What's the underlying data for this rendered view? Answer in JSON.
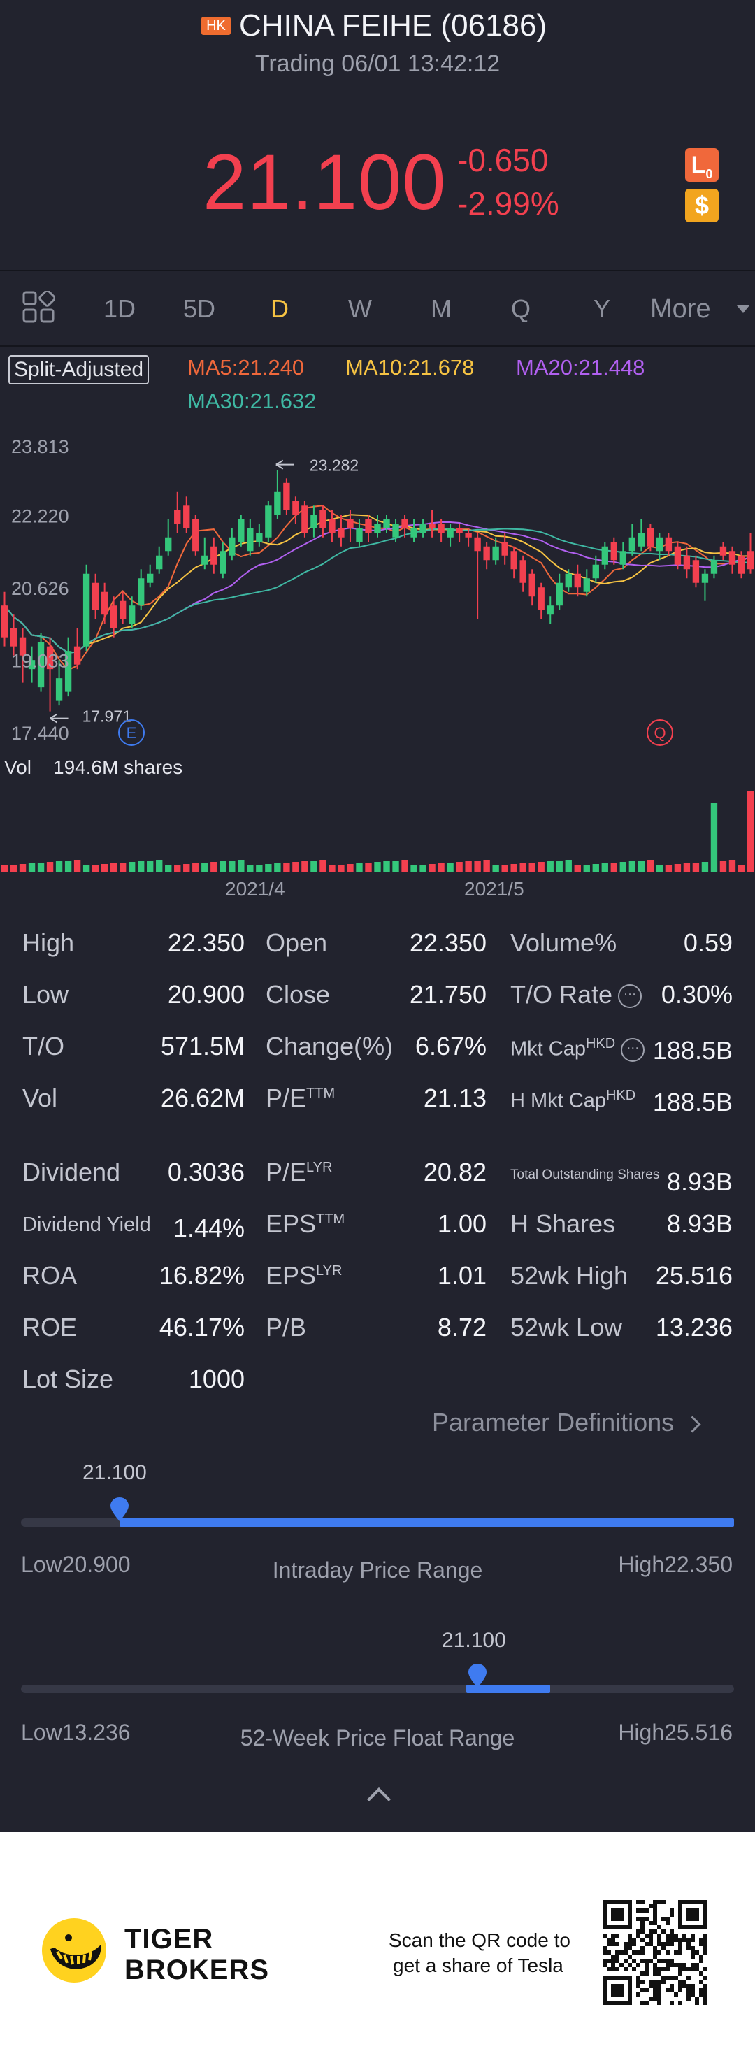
{
  "header": {
    "market_badge": "HK",
    "stock_name": "CHINA FEIHE (06186)",
    "status": "Trading 06/01 13:42:12",
    "price": "21.100",
    "change": "-0.650",
    "change_pct": "-2.99%",
    "badge_lo": "L",
    "badge_lo_sub": "0",
    "badge_currency": "$",
    "colors": {
      "down": "#f3404f",
      "up": "#34c77b",
      "accent": "#f6c343",
      "blue": "#3f7bf0"
    }
  },
  "tabs": {
    "grid_icon": "grid-icon",
    "items": [
      "1D",
      "5D",
      "D",
      "W",
      "M",
      "Q",
      "Y"
    ],
    "active": "D",
    "more": "More"
  },
  "indicators": {
    "split": "Split-Adjusted",
    "ma5": "MA5:21.240",
    "ma10": "MA10:21.678",
    "ma20": "MA20:21.448",
    "ma30": "MA30:21.632"
  },
  "chart_data": {
    "type": "candlestick",
    "y_ticks": [
      "23.813",
      "22.220",
      "20.626",
      "19.033",
      "17.440"
    ],
    "ylim": [
      17.44,
      23.813
    ],
    "x_labels": [
      "2021/4",
      "2021/5"
    ],
    "max_marker": "23.282",
    "min_marker": "17.971",
    "event_markers": [
      "E",
      "Q"
    ],
    "candles": [
      [
        19.6,
        20.3,
        20.6,
        19.4,
        "down"
      ],
      [
        19.4,
        19.8,
        20.1,
        19.2,
        "down"
      ],
      [
        19.2,
        19.6,
        19.8,
        18.6,
        "down"
      ],
      [
        19.1,
        18.9,
        19.4,
        18.6,
        "up"
      ],
      [
        18.5,
        19.5,
        19.7,
        18.4,
        "up"
      ],
      [
        18.9,
        19.4,
        19.6,
        17.97,
        "down"
      ],
      [
        18.7,
        18.2,
        19.1,
        18.1,
        "up"
      ],
      [
        19.3,
        18.4,
        19.6,
        18.3,
        "up"
      ],
      [
        19.0,
        19.4,
        19.8,
        18.9,
        "down"
      ],
      [
        19.4,
        21.0,
        21.2,
        19.3,
        "up"
      ],
      [
        20.2,
        20.8,
        21.0,
        20.0,
        "down"
      ],
      [
        20.1,
        20.6,
        20.8,
        19.9,
        "down"
      ],
      [
        19.8,
        20.3,
        20.5,
        19.6,
        "down"
      ],
      [
        20.0,
        20.4,
        20.6,
        19.9,
        "down"
      ],
      [
        20.3,
        19.9,
        20.5,
        19.8,
        "up"
      ],
      [
        20.9,
        20.3,
        21.1,
        20.2,
        "up"
      ],
      [
        21.0,
        20.8,
        21.2,
        20.7,
        "up"
      ],
      [
        21.4,
        21.1,
        21.6,
        21.0,
        "up"
      ],
      [
        21.8,
        21.5,
        22.2,
        21.4,
        "up"
      ],
      [
        22.1,
        22.4,
        22.8,
        21.9,
        "down"
      ],
      [
        22.0,
        22.5,
        22.7,
        21.9,
        "down"
      ],
      [
        21.5,
        22.2,
        22.3,
        21.4,
        "down"
      ],
      [
        21.4,
        21.2,
        21.8,
        21.1,
        "up"
      ],
      [
        21.2,
        21.6,
        21.8,
        21.0,
        "down"
      ],
      [
        21.5,
        21.0,
        21.7,
        20.9,
        "up"
      ],
      [
        21.8,
        21.4,
        22.0,
        21.3,
        "up"
      ],
      [
        22.2,
        21.7,
        22.3,
        21.6,
        "up"
      ],
      [
        22.0,
        21.5,
        22.2,
        21.4,
        "up"
      ],
      [
        21.9,
        21.7,
        22.1,
        21.6,
        "up"
      ],
      [
        22.5,
        21.8,
        22.6,
        21.7,
        "up"
      ],
      [
        22.8,
        22.3,
        23.28,
        22.2,
        "up"
      ],
      [
        22.4,
        23.0,
        23.1,
        22.3,
        "down"
      ],
      [
        22.3,
        22.6,
        22.7,
        22.1,
        "down"
      ],
      [
        21.9,
        22.5,
        22.6,
        21.8,
        "down"
      ],
      [
        22.3,
        22.0,
        22.5,
        21.8,
        "up"
      ],
      [
        22.0,
        22.4,
        22.5,
        21.8,
        "down"
      ],
      [
        21.9,
        22.2,
        22.4,
        21.7,
        "down"
      ],
      [
        21.8,
        22.0,
        22.3,
        21.6,
        "down"
      ],
      [
        22.0,
        22.2,
        22.4,
        21.7,
        "down"
      ],
      [
        22.0,
        21.7,
        22.2,
        21.6,
        "up"
      ],
      [
        21.9,
        22.2,
        22.3,
        21.7,
        "down"
      ],
      [
        22.1,
        21.9,
        22.3,
        21.8,
        "up"
      ],
      [
        22.2,
        22.0,
        22.3,
        21.9,
        "up"
      ],
      [
        22.1,
        21.8,
        22.2,
        21.7,
        "up"
      ],
      [
        22.0,
        22.2,
        22.3,
        21.8,
        "down"
      ],
      [
        22.0,
        21.8,
        22.2,
        21.7,
        "up"
      ],
      [
        22.1,
        21.9,
        22.2,
        21.8,
        "up"
      ],
      [
        22.0,
        22.1,
        22.4,
        21.8,
        "down"
      ],
      [
        21.9,
        22.1,
        22.2,
        21.7,
        "down"
      ],
      [
        22.0,
        21.8,
        22.1,
        21.6,
        "up"
      ],
      [
        21.9,
        22.0,
        22.1,
        21.7,
        "down"
      ],
      [
        21.8,
        21.9,
        22.0,
        21.6,
        "down"
      ],
      [
        21.5,
        21.8,
        21.9,
        20.0,
        "down"
      ],
      [
        21.3,
        21.6,
        21.7,
        21.1,
        "down"
      ],
      [
        21.6,
        21.3,
        21.8,
        21.2,
        "up"
      ],
      [
        21.4,
        21.7,
        21.9,
        21.2,
        "down"
      ],
      [
        21.1,
        21.5,
        21.6,
        20.9,
        "down"
      ],
      [
        20.8,
        21.3,
        21.4,
        20.6,
        "down"
      ],
      [
        20.5,
        21.0,
        21.1,
        20.3,
        "down"
      ],
      [
        20.2,
        20.7,
        20.8,
        20.0,
        "down"
      ],
      [
        20.3,
        20.1,
        20.5,
        19.9,
        "up"
      ],
      [
        20.8,
        20.3,
        21.0,
        20.2,
        "up"
      ],
      [
        21.0,
        20.7,
        21.1,
        20.6,
        "up"
      ],
      [
        20.7,
        21.0,
        21.2,
        20.5,
        "down"
      ],
      [
        20.9,
        20.6,
        21.1,
        20.5,
        "up"
      ],
      [
        21.2,
        20.9,
        21.4,
        20.8,
        "up"
      ],
      [
        21.6,
        21.2,
        21.7,
        21.1,
        "up"
      ],
      [
        21.3,
        21.7,
        21.8,
        21.2,
        "down"
      ],
      [
        21.5,
        21.2,
        21.7,
        21.1,
        "up"
      ],
      [
        21.8,
        21.5,
        22.1,
        21.4,
        "up"
      ],
      [
        21.9,
        21.6,
        22.2,
        21.5,
        "up"
      ],
      [
        21.6,
        22.0,
        22.1,
        21.5,
        "down"
      ],
      [
        21.8,
        21.5,
        21.9,
        21.3,
        "up"
      ],
      [
        21.5,
        21.8,
        21.9,
        21.4,
        "down"
      ],
      [
        21.2,
        21.6,
        21.7,
        21.1,
        "down"
      ],
      [
        21.1,
        21.4,
        21.6,
        20.9,
        "down"
      ],
      [
        20.8,
        21.3,
        21.4,
        20.7,
        "down"
      ],
      [
        21.0,
        20.8,
        21.1,
        20.4,
        "up"
      ],
      [
        21.3,
        21.0,
        21.4,
        20.9,
        "up"
      ],
      [
        21.4,
        21.6,
        21.7,
        21.3,
        "down"
      ],
      [
        21.2,
        21.5,
        21.6,
        21.0,
        "down"
      ],
      [
        21.0,
        21.4,
        21.5,
        20.9,
        "down"
      ],
      [
        21.1,
        21.5,
        21.9,
        21.0,
        "down"
      ]
    ],
    "volume": {
      "label": "Vol",
      "value": "194.6M shares"
    }
  },
  "stats": {
    "col1": [
      [
        "High",
        "22.350"
      ],
      [
        "Low",
        "20.900"
      ],
      [
        "T/O",
        "571.5M"
      ],
      [
        "Vol",
        "26.62M"
      ],
      [
        "Dividend",
        "0.3036"
      ],
      [
        "Dividend Yield",
        "1.44%"
      ],
      [
        "ROA",
        "16.82%"
      ],
      [
        "ROE",
        "46.17%"
      ],
      [
        "Lot Size",
        "1000"
      ]
    ],
    "col2": [
      [
        "Open",
        "22.350",
        ""
      ],
      [
        "Close",
        "21.750",
        ""
      ],
      [
        "Change(%)",
        "6.67%",
        ""
      ],
      [
        "P/E",
        "21.13",
        "TTM"
      ],
      [
        "P/E",
        "20.82",
        "LYR"
      ],
      [
        "EPS",
        "1.00",
        "TTM"
      ],
      [
        "EPS",
        "1.01",
        "LYR"
      ],
      [
        "P/B",
        "8.72",
        ""
      ]
    ],
    "col3": [
      [
        "Volume%",
        "0.59",
        ""
      ],
      [
        "T/O Rate",
        "0.30%",
        ""
      ],
      [
        "Mkt Cap",
        "188.5B",
        "HKD"
      ],
      [
        "H Mkt Cap",
        "188.5B",
        "HKD"
      ],
      [
        "Total Outstanding Shares",
        "8.93B",
        ""
      ],
      [
        "H Shares",
        "8.93B",
        ""
      ],
      [
        "52wk High",
        "25.516",
        ""
      ],
      [
        "52wk Low",
        "13.236",
        ""
      ]
    ],
    "info_icon": "info-icon",
    "param_definitions": "Parameter Definitions"
  },
  "intraday_range": {
    "current": "21.100",
    "low": "Low20.900",
    "high": "High22.350",
    "title": "Intraday Price Range",
    "low_value": 20.9,
    "high_value": 22.35,
    "current_value": 21.1
  },
  "week52_range": {
    "current": "21.100",
    "low": "Low13.236",
    "high": "High25.516",
    "title": "52-Week Price Float Range",
    "low_value": 13.236,
    "high_value": 25.516,
    "current_value": 21.1,
    "band_low": 20.9,
    "band_high": 22.35
  },
  "footer": {
    "brand_line1": "TIGER",
    "brand_line2": "BROKERS",
    "scan_line1": "Scan the QR code to",
    "scan_line2": "get a share of Tesla",
    "logo_icon": "tiger-logo-icon",
    "qr_icon": "qr-code-icon"
  }
}
